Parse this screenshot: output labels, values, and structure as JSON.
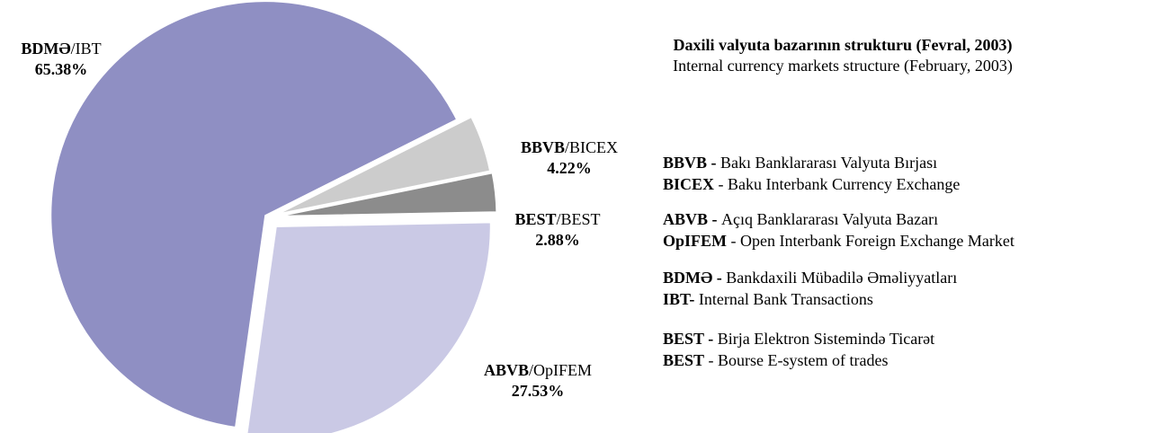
{
  "chart_data": {
    "type": "pie",
    "title": "Daxili valyuta bazarının strukturu (Fevral, 2003)",
    "subtitle": "Internal currency markets structure (February, 2003)",
    "categories": [
      "BDMƏ/IBT",
      "BBVB/BICEX",
      "BEST/BEST",
      "ABVB/OpIFEM"
    ],
    "values": [
      65.38,
      4.22,
      2.88,
      27.53
    ],
    "value_labels": [
      "65.38%",
      "4.22%",
      "2.88%",
      "27.53%"
    ],
    "colors": [
      "#8f8fc3",
      "#cccccc",
      "#8c8c8c",
      "#cac9e5"
    ],
    "legend_notes": [
      [
        {
          "abbr": "BBVB -",
          "text": "Bakı Banklararası Valyuta Bırjası"
        },
        {
          "abbr": "BICEX",
          "text": "- Baku Interbank Currency Exchange"
        }
      ],
      [
        {
          "abbr": "ABVB -",
          "text": "Açıq Banklararası Valyuta Bazarı"
        },
        {
          "abbr": "OpIFEM",
          "text": "- Open Interbank Foreign Exchange Market"
        }
      ],
      [
        {
          "abbr": "BDMƏ -",
          "text": "Bankdaxili Mübadilə Əməliyyatları"
        },
        {
          "abbr": "IBT-",
          "text": "Internal Bank Transactions"
        }
      ],
      [
        {
          "abbr": "BEST -",
          "text": "Birja Elektron Sistemində Ticarət"
        },
        {
          "abbr": "BEST",
          "text": "- Bourse E-system of trades"
        }
      ]
    ]
  }
}
